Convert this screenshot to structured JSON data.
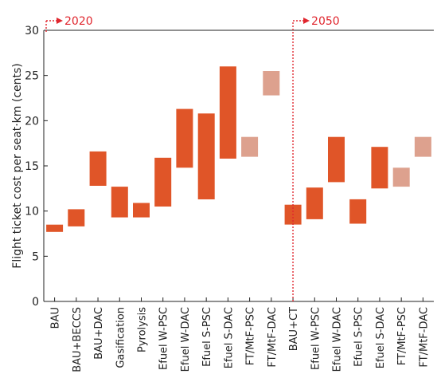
{
  "chart_data": {
    "type": "bar",
    "subtype": "floating-range",
    "ylabel": "Flight ticket cost per seat·km (cents)",
    "ylim": [
      0,
      30
    ],
    "yticks": [
      0,
      5,
      10,
      15,
      20,
      25,
      30
    ],
    "grid": false,
    "colors": {
      "solid": "#e05528",
      "light": "#dda18e",
      "annotation": "#e0262e"
    },
    "annotations": [
      {
        "label": "2020",
        "at_category_index": 0
      },
      {
        "label": "2050",
        "at_category_index": 11.5
      }
    ],
    "categories": [
      "BAU",
      "BAU+BECCS",
      "BAU+DAC",
      "Gasification",
      "Pyrolysis",
      "Efuel W-PSC",
      "Efuel W-DAC",
      "Efuel S-PSC",
      "Efuel S-DAC",
      "FT/MtF-PSC",
      "FT/MtF-DAC",
      "BAU+CT",
      "Efuel W-PSC",
      "Efuel W-DAC",
      "Efuel S-PSC",
      "Efuel S-DAC",
      "FT/MtF-PSC",
      "FT/MtF-DAC"
    ],
    "ranges": [
      {
        "low": 7.7,
        "high": 8.5,
        "style": "solid"
      },
      {
        "low": 8.3,
        "high": 10.2,
        "style": "solid"
      },
      {
        "low": 12.8,
        "high": 16.6,
        "style": "solid"
      },
      {
        "low": 9.3,
        "high": 12.7,
        "style": "solid"
      },
      {
        "low": 9.3,
        "high": 10.9,
        "style": "solid"
      },
      {
        "low": 10.5,
        "high": 15.9,
        "style": "solid"
      },
      {
        "low": 14.8,
        "high": 21.3,
        "style": "solid"
      },
      {
        "low": 11.3,
        "high": 20.8,
        "style": "solid"
      },
      {
        "low": 15.8,
        "high": 26.0,
        "style": "solid"
      },
      {
        "low": 16.0,
        "high": 18.2,
        "style": "light"
      },
      {
        "low": 22.8,
        "high": 25.5,
        "style": "light"
      },
      {
        "low": 8.5,
        "high": 10.7,
        "style": "solid"
      },
      {
        "low": 9.1,
        "high": 12.6,
        "style": "solid"
      },
      {
        "low": 13.2,
        "high": 18.2,
        "style": "solid"
      },
      {
        "low": 8.6,
        "high": 11.3,
        "style": "solid"
      },
      {
        "low": 12.5,
        "high": 17.1,
        "style": "solid"
      },
      {
        "low": 12.7,
        "high": 14.8,
        "style": "light"
      },
      {
        "low": 16.0,
        "high": 18.2,
        "style": "light"
      }
    ]
  }
}
